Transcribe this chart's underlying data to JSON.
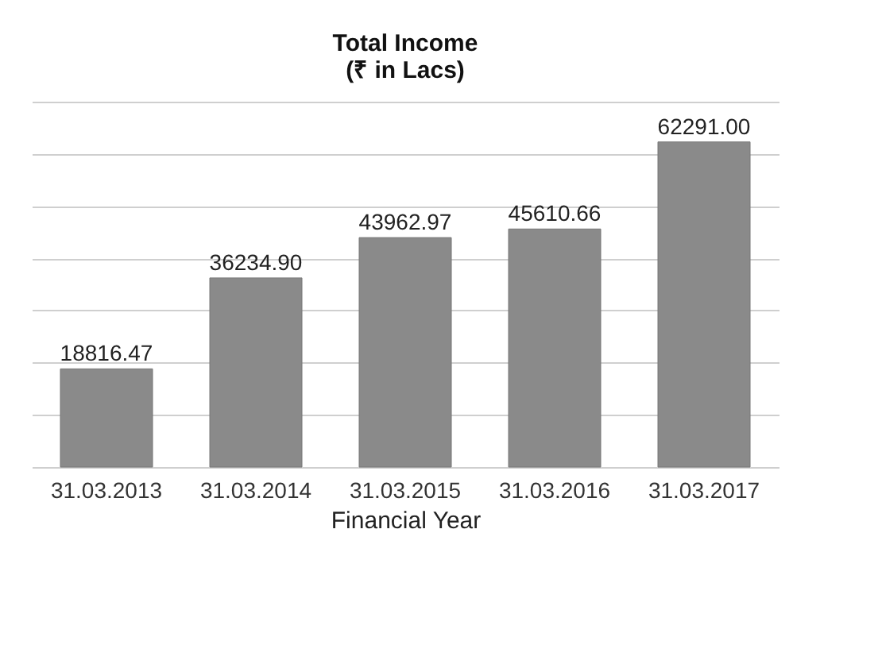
{
  "chart_data": {
    "type": "bar",
    "title": "Total Income\n(₹ in Lacs)",
    "xlabel": "Financial Year",
    "categories": [
      "31.03.2013",
      "31.03.2014",
      "31.03.2015",
      "31.03.2016",
      "31.03.2017"
    ],
    "values": [
      18816.47,
      36234.9,
      43962.97,
      45610.66,
      62291.0
    ],
    "value_labels": [
      "18816.47",
      "36234.90",
      "43962.97",
      "45610.66",
      "62291.00"
    ],
    "color": "#8a8a8a",
    "ylim": [
      0,
      70000
    ],
    "yticks": [
      {
        "value": 0,
        "label": null
      },
      {
        "value": 10000,
        "label": null
      },
      {
        "value": 20000,
        "label": null
      },
      {
        "value": 30000,
        "label": null
      },
      {
        "value": 40000,
        "label": null
      },
      {
        "value": 50000,
        "label": null
      },
      {
        "value": 60000,
        "label": null
      },
      {
        "value": 70000,
        "label": null
      }
    ],
    "grid": "y",
    "tick_labels": "x"
  }
}
